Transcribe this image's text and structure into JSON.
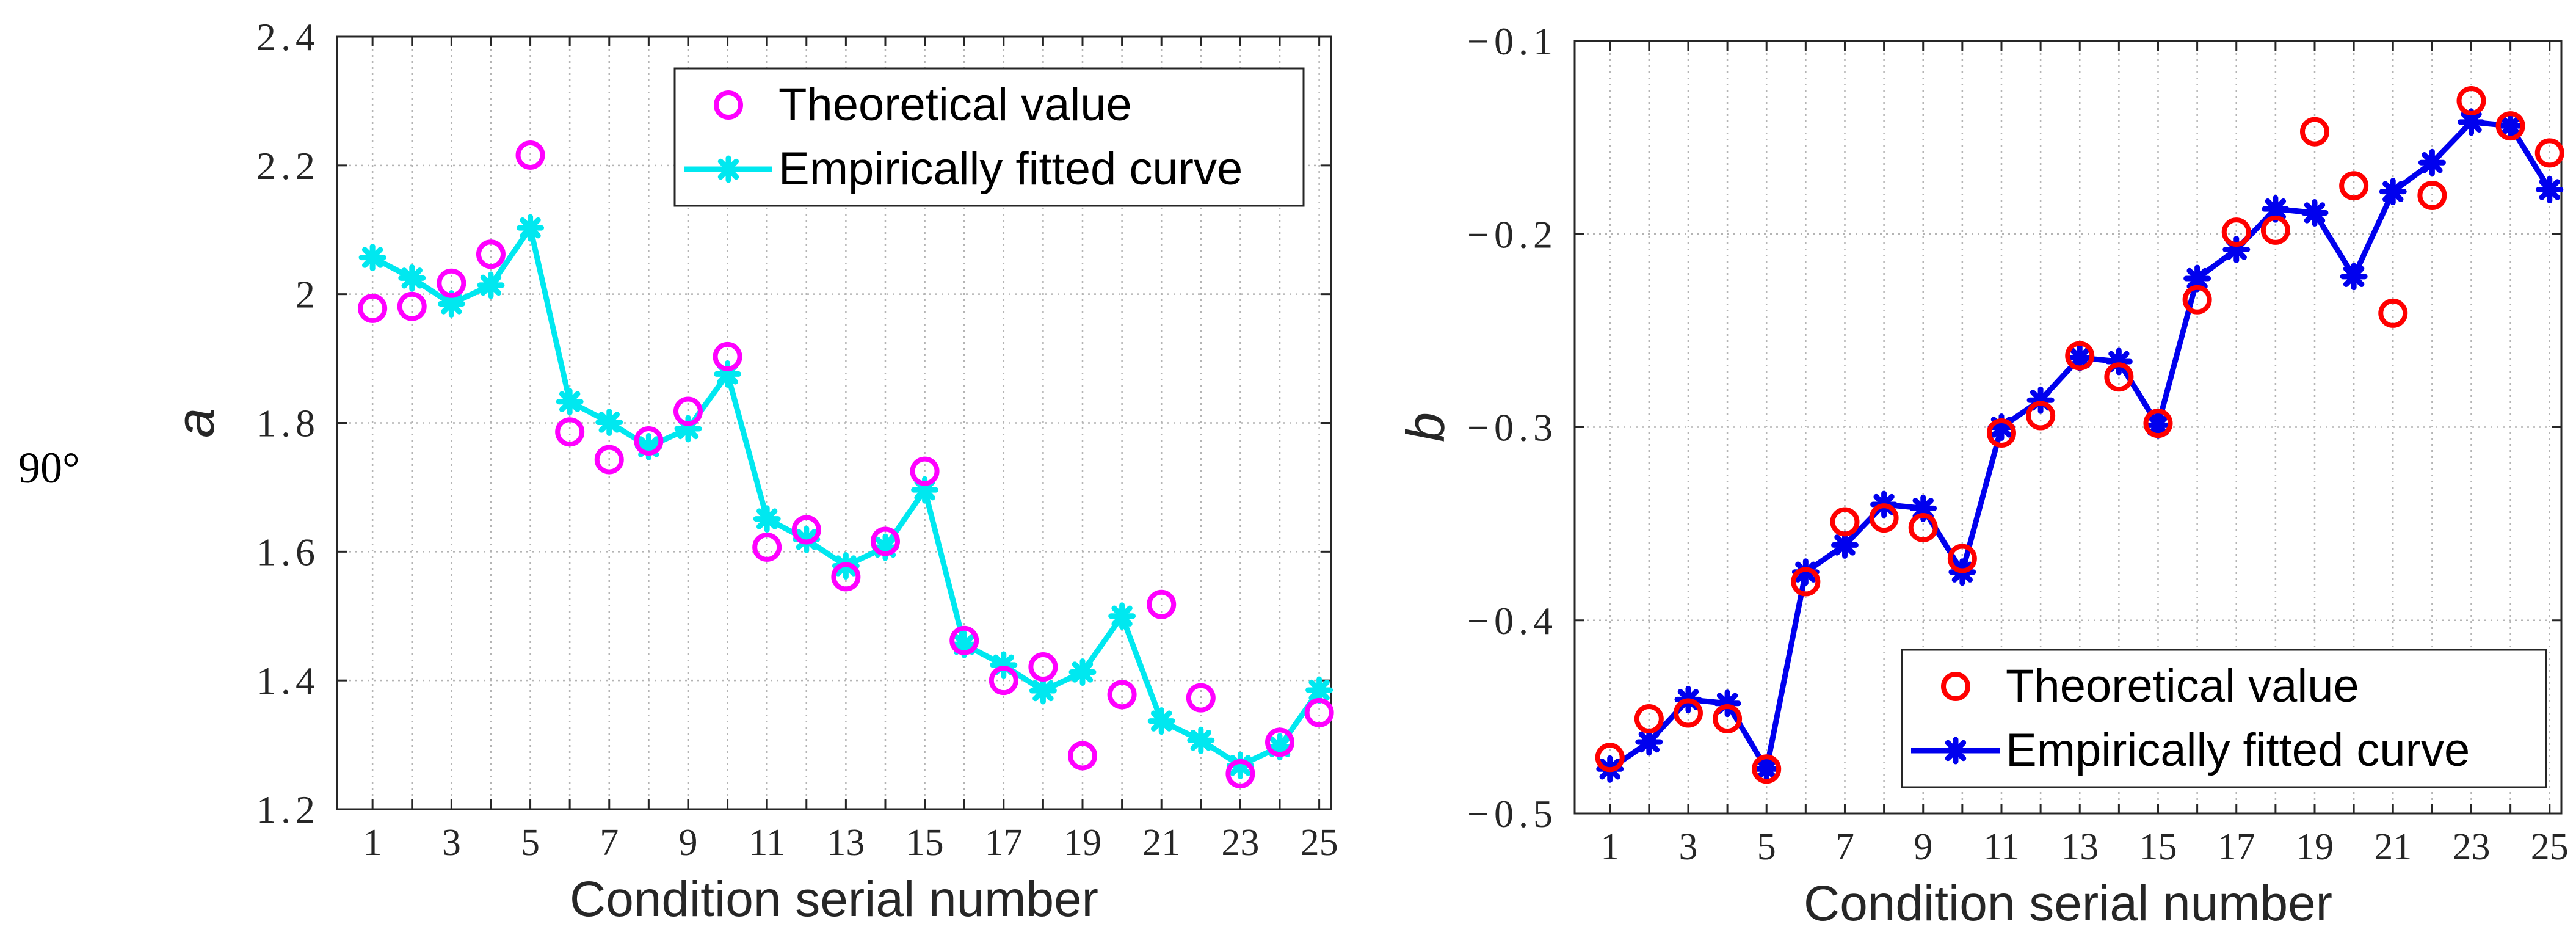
{
  "figure_label": "90°",
  "chart_data": [
    {
      "type": "line",
      "ylabel": "a",
      "xlabel": "Condition serial number",
      "x": [
        1,
        2,
        3,
        4,
        5,
        6,
        7,
        8,
        9,
        10,
        11,
        12,
        13,
        14,
        15,
        16,
        17,
        18,
        19,
        20,
        21,
        22,
        23,
        24,
        25
      ],
      "xticks": [
        1,
        3,
        5,
        7,
        9,
        11,
        13,
        15,
        17,
        19,
        21,
        23,
        25
      ],
      "xlim": [
        0.1,
        25.3
      ],
      "ylim": [
        1.2,
        2.4
      ],
      "yticks": [
        1.2,
        1.4,
        1.6,
        1.8,
        2.0,
        2.2,
        2.4
      ],
      "ytick_labels": [
        "1.2",
        "1.4",
        "1.6",
        "1.8",
        "2",
        "2.2",
        "2.4"
      ],
      "grid": true,
      "legend_position": "top-right",
      "series": [
        {
          "name": "Theoretical value",
          "style": "markers",
          "marker": "circle",
          "color": "#ff00ff",
          "values": [
            1.978,
            1.981,
            2.017,
            2.062,
            2.216,
            1.786,
            1.743,
            1.772,
            1.818,
            1.903,
            1.607,
            1.634,
            1.561,
            1.616,
            1.725,
            1.462,
            1.4,
            1.421,
            1.283,
            1.378,
            1.518,
            1.373,
            1.255,
            1.304,
            1.35
          ]
        },
        {
          "name": "Empirically fitted curve",
          "style": "line-markers",
          "marker": "asterisk",
          "color": "#00e8f0",
          "values": [
            2.057,
            2.025,
            1.985,
            2.014,
            2.103,
            1.833,
            1.801,
            1.763,
            1.791,
            1.876,
            1.651,
            1.619,
            1.578,
            1.607,
            1.696,
            1.456,
            1.424,
            1.384,
            1.413,
            1.5,
            1.337,
            1.307,
            1.268,
            1.297,
            1.385
          ]
        }
      ]
    },
    {
      "type": "line",
      "ylabel": "b",
      "xlabel": "Condition serial number",
      "x": [
        1,
        2,
        3,
        4,
        5,
        6,
        7,
        8,
        9,
        10,
        11,
        12,
        13,
        14,
        15,
        16,
        17,
        18,
        19,
        20,
        21,
        22,
        23,
        24,
        25
      ],
      "xticks": [
        1,
        3,
        5,
        7,
        9,
        11,
        13,
        15,
        17,
        19,
        21,
        23,
        25
      ],
      "xlim": [
        0.1,
        25.3
      ],
      "ylim": [
        -0.5,
        -0.1
      ],
      "yticks": [
        -0.5,
        -0.4,
        -0.3,
        -0.2,
        -0.1
      ],
      "ytick_labels": [
        "−0.5",
        "−0.4",
        "−0.3",
        "−0.2",
        "−0.1"
      ],
      "grid": true,
      "legend_position": "bottom-right",
      "series": [
        {
          "name": "Theoretical value",
          "style": "markers",
          "marker": "circle",
          "color": "#ff0000",
          "values": [
            -0.471,
            -0.451,
            -0.448,
            -0.451,
            -0.477,
            -0.38,
            -0.349,
            -0.347,
            -0.352,
            -0.368,
            -0.303,
            -0.294,
            -0.263,
            -0.274,
            -0.298,
            -0.234,
            -0.199,
            -0.198,
            -0.147,
            -0.175,
            -0.241,
            -0.18,
            -0.131,
            -0.144,
            -0.158
          ]
        },
        {
          "name": "Empirically fitted curve",
          "style": "line-markers",
          "marker": "asterisk",
          "color": "#0000ee",
          "values": [
            -0.477,
            -0.463,
            -0.441,
            -0.443,
            -0.477,
            -0.375,
            -0.361,
            -0.34,
            -0.342,
            -0.375,
            -0.3,
            -0.286,
            -0.264,
            -0.266,
            -0.299,
            -0.223,
            -0.208,
            -0.187,
            -0.189,
            -0.222,
            -0.178,
            -0.163,
            -0.142,
            -0.144,
            -0.177
          ]
        }
      ]
    }
  ]
}
